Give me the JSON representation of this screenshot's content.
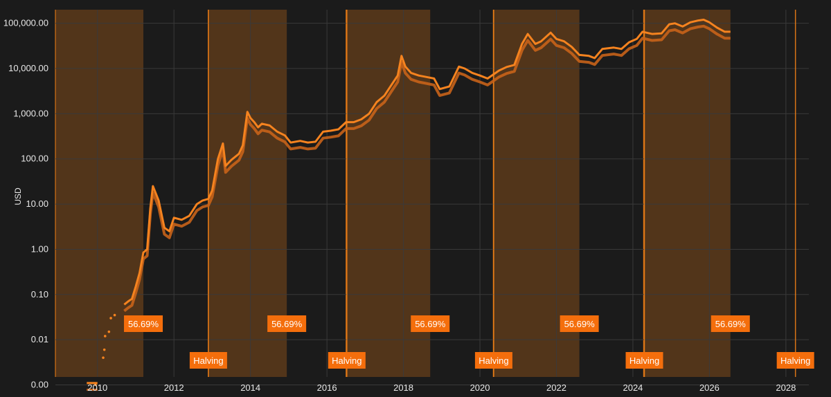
{
  "chart_data": {
    "type": "line",
    "title": "",
    "xlabel": "",
    "ylabel": "USD",
    "y_scale": "log",
    "grid": true,
    "legend": "none",
    "xlim": [
      2008.9,
      2028.6
    ],
    "ylim": [
      0.0015,
      200000
    ],
    "y_ticks": [
      {
        "value": 0.001,
        "label": "0.00"
      },
      {
        "value": 0.01,
        "label": "0.01"
      },
      {
        "value": 0.1,
        "label": "0.10"
      },
      {
        "value": 1,
        "label": "1.00"
      },
      {
        "value": 10,
        "label": "10.00"
      },
      {
        "value": 100,
        "label": "100.00"
      },
      {
        "value": 1000,
        "label": "1,000.00"
      },
      {
        "value": 10000,
        "label": "10,000.00"
      },
      {
        "value": 100000,
        "label": "100,000.00"
      }
    ],
    "x_ticks": [
      {
        "value": 2010,
        "label": "2010"
      },
      {
        "value": 2012,
        "label": "2012"
      },
      {
        "value": 2014,
        "label": "2014"
      },
      {
        "value": 2016,
        "label": "2016"
      },
      {
        "value": 2018,
        "label": "2018"
      },
      {
        "value": 2020,
        "label": "2020"
      },
      {
        "value": 2022,
        "label": "2022"
      },
      {
        "value": 2024,
        "label": "2024"
      },
      {
        "value": 2026,
        "label": "2026"
      },
      {
        "value": 2028,
        "label": "2028"
      }
    ],
    "shaded_periods": [
      {
        "start": 2008.9,
        "end": 2011.2,
        "label": "56.69%"
      },
      {
        "start": 2012.9,
        "end": 2014.95,
        "label": "56.69%"
      },
      {
        "start": 2016.5,
        "end": 2018.7,
        "label": "56.69%"
      },
      {
        "start": 2020.35,
        "end": 2022.6,
        "label": "56.69%"
      },
      {
        "start": 2024.28,
        "end": 2026.55,
        "label": "56.69%"
      }
    ],
    "halvings": [
      {
        "x": 2012.9,
        "label": "Halving"
      },
      {
        "x": 2016.52,
        "label": "Halving"
      },
      {
        "x": 2020.36,
        "label": "Halving"
      },
      {
        "x": 2024.3,
        "label": "Halving"
      },
      {
        "x": 2028.25,
        "label": "Halving"
      }
    ],
    "colors": {
      "background": "#1b1b1b",
      "line": "#f5831f",
      "band": "#f07f16",
      "badge": "#f46e0c",
      "grid": "#3a3a3a",
      "axis_text": "#e8e8e8"
    },
    "series": [
      {
        "x": [
          2010.7,
          2010.8,
          2010.9,
          2011.0,
          2011.1,
          2011.2,
          2011.3,
          2011.38,
          2011.45,
          2011.6,
          2011.75,
          2011.88,
          2012.0,
          2012.2,
          2012.4,
          2012.6,
          2012.75,
          2012.9,
          2013.0,
          2013.15,
          2013.28,
          2013.35,
          2013.5,
          2013.7,
          2013.8,
          2013.92,
          2014.0,
          2014.1,
          2014.2,
          2014.3,
          2014.5,
          2014.7,
          2014.9,
          2015.05,
          2015.3,
          2015.5,
          2015.7,
          2015.9,
          2016.1,
          2016.3,
          2016.5,
          2016.7,
          2016.9,
          2017.1,
          2017.3,
          2017.5,
          2017.7,
          2017.85,
          2017.95,
          2018.05,
          2018.2,
          2018.4,
          2018.6,
          2018.8,
          2018.95,
          2019.2,
          2019.45,
          2019.6,
          2019.8,
          2020.0,
          2020.2,
          2020.5,
          2020.7,
          2020.9,
          2021.1,
          2021.25,
          2021.45,
          2021.6,
          2021.85,
          2022.0,
          2022.2,
          2022.4,
          2022.6,
          2022.85,
          2023.0,
          2023.2,
          2023.5,
          2023.7,
          2023.9,
          2024.1,
          2024.25,
          2024.5,
          2024.75,
          2024.95,
          2025.1,
          2025.3,
          2025.5,
          2025.7,
          2025.85,
          2026.0,
          2026.2,
          2026.4,
          2026.55
        ],
        "values": [
          0.06,
          0.07,
          0.08,
          0.15,
          0.3,
          0.85,
          1.0,
          8.0,
          25.0,
          12.0,
          3.0,
          2.5,
          5.0,
          4.5,
          5.5,
          10.0,
          12.0,
          13.0,
          20.0,
          100.0,
          220.0,
          70.0,
          95.0,
          130.0,
          200.0,
          1100.0,
          800.0,
          650.0,
          500.0,
          600.0,
          550.0,
          400.0,
          330.0,
          230.0,
          250.0,
          230.0,
          240.0,
          400.0,
          420.0,
          450.0,
          650.0,
          650.0,
          750.0,
          1000.0,
          1800.0,
          2500.0,
          4500.0,
          7000.0,
          19000.0,
          11000.0,
          8000.0,
          7000.0,
          6500.0,
          6000.0,
          3500.0,
          4000.0,
          11000.0,
          10000.0,
          8000.0,
          7000.0,
          6000.0,
          9000.0,
          10800.0,
          12000.0,
          35000.0,
          58000.0,
          35000.0,
          40000.0,
          62000.0,
          45000.0,
          40000.0,
          30000.0,
          20000.0,
          19000.0,
          17000.0,
          27000.0,
          29000.0,
          27000.0,
          38000.0,
          45000.0,
          65000.0,
          58000.0,
          60000.0,
          95000.0,
          100000.0,
          85000.0,
          105000.0,
          115000.0,
          120000.0,
          105000.0,
          80000.0,
          65000.0,
          65000.0
        ]
      }
    ],
    "early_points": {
      "x": [
        2009.95,
        2010.15,
        2010.18,
        2010.2,
        2010.3,
        2010.35,
        2010.45
      ],
      "values": [
        0.001,
        0.004,
        0.006,
        0.012,
        0.015,
        0.03,
        0.035
      ]
    }
  }
}
